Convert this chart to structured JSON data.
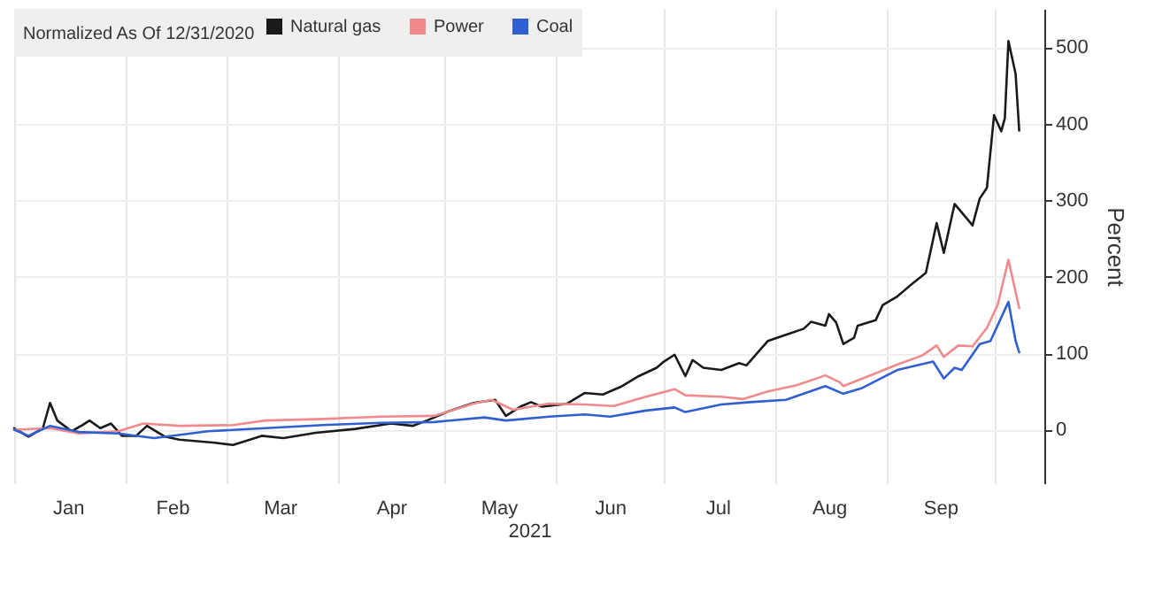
{
  "chart_data": {
    "type": "line",
    "xlabel": "2021",
    "ylabel": "Percent",
    "legend_title": "Normalized As Of 12/31/2020",
    "legend": "top left",
    "grid": true,
    "xlim": [
      "2021-01-01",
      "2021-10-15"
    ],
    "xticks": [
      {
        "value": "2021-01-01",
        "label": null
      },
      {
        "value": "2021-01-16",
        "label": "Jan"
      },
      {
        "value": "2021-02-01",
        "label": null
      },
      {
        "value": "2021-02-14",
        "label": "Feb"
      },
      {
        "value": "2021-03-01",
        "label": null
      },
      {
        "value": "2021-03-16",
        "label": "Mar"
      },
      {
        "value": "2021-04-01",
        "label": null
      },
      {
        "value": "2021-04-16",
        "label": "Apr"
      },
      {
        "value": "2021-05-01",
        "label": null
      },
      {
        "value": "2021-05-16",
        "label": "May"
      },
      {
        "value": "2021-06-01",
        "label": null
      },
      {
        "value": "2021-06-16",
        "label": "Jun"
      },
      {
        "value": "2021-07-01",
        "label": null
      },
      {
        "value": "2021-07-16",
        "label": "Jul"
      },
      {
        "value": "2021-08-01",
        "label": null
      },
      {
        "value": "2021-08-16",
        "label": "Aug"
      },
      {
        "value": "2021-09-01",
        "label": null
      },
      {
        "value": "2021-09-16",
        "label": "Sep"
      },
      {
        "value": "2021-10-01",
        "label": null
      }
    ],
    "ylim": [
      -70,
      550
    ],
    "yticks": [
      0,
      100,
      200,
      300,
      400,
      500
    ],
    "series": [
      {
        "name": "Natural gas",
        "color": "#1a1a1a",
        "x": [
          "2021-01-01",
          "2021-01-05",
          "2021-01-09",
          "2021-01-11",
          "2021-01-13",
          "2021-01-17",
          "2021-01-20",
          "2021-01-22",
          "2021-01-25",
          "2021-01-28",
          "2021-01-31",
          "2021-02-04",
          "2021-02-07",
          "2021-02-12",
          "2021-02-16",
          "2021-02-26",
          "2021-03-03",
          "2021-03-11",
          "2021-03-17",
          "2021-03-26",
          "2021-04-06",
          "2021-04-16",
          "2021-04-22",
          "2021-04-26",
          "2021-05-02",
          "2021-05-09",
          "2021-05-15",
          "2021-05-18",
          "2021-05-22",
          "2021-05-25",
          "2021-05-28",
          "2021-06-04",
          "2021-06-09",
          "2021-06-14",
          "2021-06-19",
          "2021-06-24",
          "2021-06-29",
          "2021-07-01",
          "2021-07-04",
          "2021-07-07",
          "2021-07-09",
          "2021-07-12",
          "2021-07-17",
          "2021-07-22",
          "2021-07-24",
          "2021-07-30",
          "2021-08-04",
          "2021-08-09",
          "2021-08-11",
          "2021-08-15",
          "2021-08-16",
          "2021-08-18",
          "2021-08-20",
          "2021-08-23",
          "2021-08-24",
          "2021-08-29",
          "2021-08-31",
          "2021-09-04",
          "2021-09-08",
          "2021-09-12",
          "2021-09-15",
          "2021-09-17",
          "2021-09-20",
          "2021-09-25",
          "2021-09-27",
          "2021-09-29",
          "2021-10-01",
          "2021-10-03",
          "2021-10-04",
          "2021-10-05",
          "2021-10-07",
          "2021-10-08"
        ],
        "values": [
          2,
          -9,
          2,
          35,
          12,
          -2,
          6,
          12,
          2,
          8,
          -8,
          -8,
          5,
          -9,
          -13,
          -17,
          -20,
          -8,
          -11,
          -4,
          1,
          8,
          5,
          12,
          24,
          35,
          39,
          18,
          30,
          36,
          30,
          34,
          48,
          46,
          56,
          70,
          81,
          89,
          98,
          70,
          91,
          81,
          78,
          87,
          84,
          116,
          124,
          132,
          141,
          136,
          151,
          140,
          112,
          120,
          136,
          143,
          163,
          174,
          190,
          205,
          270,
          231,
          295,
          267,
          302,
          316,
          411,
          390,
          407,
          508,
          465,
          391
        ]
      },
      {
        "name": "Power",
        "color": "#f08a8c",
        "x": [
          "2021-01-01",
          "2021-01-11",
          "2021-01-19",
          "2021-01-30",
          "2021-02-06",
          "2021-02-16",
          "2021-03-03",
          "2021-03-12",
          "2021-03-28",
          "2021-04-13",
          "2021-04-28",
          "2021-05-09",
          "2021-05-14",
          "2021-05-20",
          "2021-05-30",
          "2021-06-09",
          "2021-06-17",
          "2021-06-26",
          "2021-07-04",
          "2021-07-07",
          "2021-07-17",
          "2021-07-23",
          "2021-07-30",
          "2021-08-07",
          "2021-08-15",
          "2021-08-19",
          "2021-08-20",
          "2021-08-27",
          "2021-09-04",
          "2021-09-11",
          "2021-09-15",
          "2021-09-17",
          "2021-09-21",
          "2021-09-25",
          "2021-09-29",
          "2021-10-02",
          "2021-10-05",
          "2021-10-08"
        ],
        "values": [
          0,
          2,
          -5,
          -2,
          8,
          5,
          6,
          12,
          14,
          17,
          18,
          34,
          39,
          26,
          34,
          33,
          31,
          43,
          53,
          45,
          43,
          40,
          50,
          58,
          71,
          62,
          57,
          70,
          85,
          97,
          110,
          95,
          110,
          109,
          133,
          163,
          222,
          159
        ]
      },
      {
        "name": "Coal",
        "color": "#2f5fd0",
        "x": [
          "2021-01-01",
          "2021-01-05",
          "2021-01-11",
          "2021-01-19",
          "2021-01-30",
          "2021-02-09",
          "2021-02-24",
          "2021-03-12",
          "2021-03-28",
          "2021-04-13",
          "2021-04-28",
          "2021-05-12",
          "2021-05-18",
          "2021-05-30",
          "2021-06-09",
          "2021-06-16",
          "2021-06-26",
          "2021-07-04",
          "2021-07-07",
          "2021-07-17",
          "2021-07-25",
          "2021-08-04",
          "2021-08-15",
          "2021-08-20",
          "2021-08-25",
          "2021-09-04",
          "2021-09-14",
          "2021-09-17",
          "2021-09-20",
          "2021-09-22",
          "2021-09-27",
          "2021-09-30",
          "2021-10-05",
          "2021-10-07",
          "2021-10-08"
        ],
        "values": [
          0,
          -8,
          5,
          -3,
          -5,
          -11,
          -2,
          2,
          6,
          9,
          10,
          16,
          12,
          17,
          20,
          17,
          25,
          29,
          23,
          33,
          36,
          39,
          57,
          47,
          54,
          78,
          89,
          67,
          81,
          78,
          112,
          116,
          167,
          116,
          101
        ]
      }
    ]
  }
}
